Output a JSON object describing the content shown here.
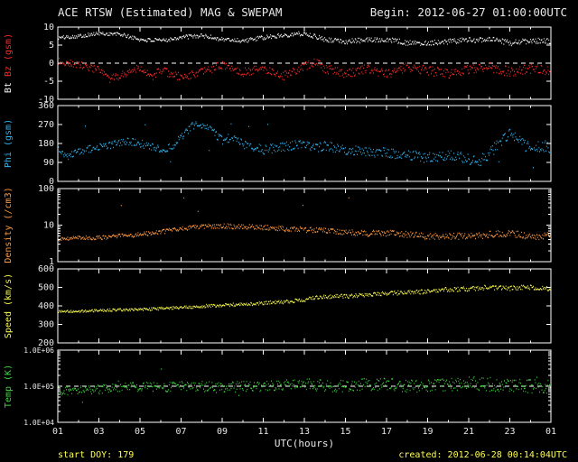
{
  "header": {
    "title": "ACE RTSW (Estimated) MAG & SWEPAM",
    "begin": "Begin: 2012-06-27 01:00:00UTC"
  },
  "footer": {
    "xaxis_title": "UTC(hours)",
    "start_doy": "start DOY: 179",
    "created": "created: 2012-06-28 00:14:04UTC"
  },
  "colors": {
    "background": "#000000",
    "frame": "#ffffff",
    "text": "#e8e8e8",
    "footer_text": "#ffff55",
    "bt": "#f5f5f5",
    "bz": "#ff2a2a",
    "phi": "#30b4f2",
    "density": "#ff9b42",
    "speed": "#f7f74e",
    "temp": "#3cd63c"
  },
  "x_axis": {
    "min": 1,
    "max": 25,
    "major_ticks": [
      1,
      3,
      5,
      7,
      9,
      11,
      13,
      15,
      17,
      19,
      21,
      23,
      25
    ],
    "labels": [
      "01",
      "03",
      "05",
      "07",
      "09",
      "11",
      "13",
      "15",
      "17",
      "19",
      "21",
      "23",
      "01"
    ],
    "minor_step": 1
  },
  "chart_data": [
    {
      "type": "scatter",
      "name": "bt-bz",
      "scale": "linear",
      "ylim": [
        -10,
        10
      ],
      "yticks": [
        10,
        5,
        0,
        -5,
        -10
      ],
      "ytick_labels": [
        "10",
        "5",
        "0",
        "-5",
        "-10"
      ],
      "tick_font": 10,
      "dashed_line_at": 0,
      "ylabel_segments": [
        {
          "text": "Bt ",
          "color_key": "bt"
        },
        {
          "text": "Bz ",
          "color_key": "bz"
        },
        {
          "text": "(gsm)",
          "color_key": "bz"
        }
      ],
      "series": [
        {
          "name": "Bt",
          "color_key": "bt",
          "seed": 101,
          "n": 700,
          "jitter": [
            0.5,
            0.8
          ],
          "trend": [
            [
              1,
              7
            ],
            [
              2,
              7.5
            ],
            [
              3,
              8.2
            ],
            [
              4,
              8
            ],
            [
              5,
              6.5
            ],
            [
              6,
              6.2
            ],
            [
              7,
              7.2
            ],
            [
              8,
              7.6
            ],
            [
              9,
              6.6
            ],
            [
              10,
              6.2
            ],
            [
              11,
              7
            ],
            [
              12,
              7.8
            ],
            [
              13,
              8.2
            ],
            [
              14,
              6.6
            ],
            [
              15,
              6
            ],
            [
              16,
              6.4
            ],
            [
              17,
              6.6
            ],
            [
              18,
              5.6
            ],
            [
              19,
              5.6
            ],
            [
              20,
              6
            ],
            [
              21,
              6.4
            ],
            [
              22,
              6.6
            ],
            [
              23,
              5.6
            ],
            [
              24,
              6.2
            ],
            [
              25,
              6
            ]
          ]
        },
        {
          "name": "Bz",
          "color_key": "bz",
          "seed": 202,
          "n": 700,
          "jitter": [
            1.0,
            1.4
          ],
          "trend": [
            [
              1,
              0.5
            ],
            [
              2,
              -0.5
            ],
            [
              3,
              -2
            ],
            [
              3.5,
              -4.5
            ],
            [
              4,
              -3.5
            ],
            [
              5,
              -1
            ],
            [
              5.5,
              -4
            ],
            [
              6,
              -2
            ],
            [
              7,
              -4
            ],
            [
              8,
              -2.5
            ],
            [
              9,
              -0.5
            ],
            [
              10,
              -2.5
            ],
            [
              11,
              -1.5
            ],
            [
              12,
              -3.5
            ],
            [
              13,
              -1
            ],
            [
              13.5,
              0.5
            ],
            [
              14,
              -1.5
            ],
            [
              15,
              -3
            ],
            [
              16,
              -1.5
            ],
            [
              17,
              -3
            ],
            [
              18,
              -1
            ],
            [
              19,
              -2
            ],
            [
              20,
              -3
            ],
            [
              21,
              -1.5
            ],
            [
              22,
              -1
            ],
            [
              23,
              -2.5
            ],
            [
              24,
              -1.5
            ],
            [
              25,
              -2
            ]
          ]
        }
      ]
    },
    {
      "type": "scatter",
      "name": "phi",
      "scale": "linear",
      "ylim": [
        0,
        360
      ],
      "yticks": [
        360,
        270,
        180,
        90,
        0
      ],
      "ytick_labels": [
        "360",
        "270",
        "180",
        "90",
        "0"
      ],
      "tick_font": 10,
      "dashed_line_at": null,
      "ylabel_segments": [
        {
          "text": "Phi (gsm)",
          "color_key": "phi"
        }
      ],
      "series": [
        {
          "name": "Phi",
          "color_key": "phi",
          "seed": 303,
          "n": 700,
          "jitter": [
            16,
            28
          ],
          "outlier_rate": 0.012,
          "outlier_mag": 130,
          "trend": [
            [
              1,
              150
            ],
            [
              1.5,
              120
            ],
            [
              2,
              140
            ],
            [
              3,
              165
            ],
            [
              4,
              180
            ],
            [
              4.5,
              190
            ],
            [
              5,
              180
            ],
            [
              6,
              150
            ],
            [
              6.5,
              165
            ],
            [
              7,
              210
            ],
            [
              7.5,
              260
            ],
            [
              8,
              270
            ],
            [
              8.5,
              235
            ],
            [
              9,
              195
            ],
            [
              9.5,
              210
            ],
            [
              10,
              175
            ],
            [
              11,
              150
            ],
            [
              12,
              165
            ],
            [
              13,
              180
            ],
            [
              13.5,
              160
            ],
            [
              14,
              170
            ],
            [
              15,
              150
            ],
            [
              16,
              140
            ],
            [
              17,
              135
            ],
            [
              18,
              125
            ],
            [
              19,
              110
            ],
            [
              20,
              125
            ],
            [
              21,
              105
            ],
            [
              21.5,
              95
            ],
            [
              22,
              130
            ],
            [
              22.5,
              190
            ],
            [
              23,
              225
            ],
            [
              23.5,
              190
            ],
            [
              24,
              150
            ],
            [
              24.5,
              170
            ],
            [
              25,
              160
            ]
          ]
        }
      ]
    },
    {
      "type": "scatter",
      "name": "density",
      "scale": "log",
      "ylim": [
        1,
        100
      ],
      "yticks": [
        100,
        10,
        1
      ],
      "ytick_labels": [
        "100",
        "10",
        "1"
      ],
      "tick_font": 10,
      "dashed_line_at": null,
      "ylabel_segments": [
        {
          "text": "Density (/cm3)",
          "color_key": "density"
        }
      ],
      "series": [
        {
          "name": "Density",
          "color_key": "density",
          "seed": 404,
          "n": 700,
          "jitter": [
            0.05,
            0.1
          ],
          "outlier_rate": 0.007,
          "outlier_mag": 0.9,
          "outlier_dir": 1,
          "trend": [
            [
              1,
              4
            ],
            [
              2,
              4.5
            ],
            [
              3,
              4.5
            ],
            [
              4,
              5
            ],
            [
              5,
              5.5
            ],
            [
              6,
              6.5
            ],
            [
              7,
              8
            ],
            [
              8,
              9
            ],
            [
              9,
              9.5
            ],
            [
              10,
              9
            ],
            [
              11,
              8.5
            ],
            [
              12,
              8
            ],
            [
              13,
              7.5
            ],
            [
              14,
              7
            ],
            [
              15,
              6.5
            ],
            [
              16,
              6
            ],
            [
              17,
              6
            ],
            [
              18,
              5.5
            ],
            [
              19,
              5
            ],
            [
              20,
              5
            ],
            [
              21,
              5
            ],
            [
              22,
              5.5
            ],
            [
              23,
              6
            ],
            [
              24,
              5
            ],
            [
              25,
              5
            ]
          ]
        }
      ]
    },
    {
      "type": "scatter",
      "name": "speed",
      "scale": "linear",
      "ylim": [
        200,
        600
      ],
      "yticks": [
        600,
        500,
        400,
        300,
        200
      ],
      "ytick_labels": [
        "600",
        "500",
        "400",
        "300",
        "200"
      ],
      "tick_font": 10,
      "dashed_line_at": null,
      "ylabel_segments": [
        {
          "text": "Speed (km/s)",
          "color_key": "speed"
        }
      ],
      "series": [
        {
          "name": "Speed",
          "color_key": "speed",
          "seed": 505,
          "n": 700,
          "jitter": [
            6,
            14
          ],
          "trend": [
            [
              1,
              370
            ],
            [
              2,
              370
            ],
            [
              3,
              375
            ],
            [
              4,
              378
            ],
            [
              5,
              380
            ],
            [
              6,
              385
            ],
            [
              7,
              392
            ],
            [
              8,
              398
            ],
            [
              9,
              402
            ],
            [
              10,
              408
            ],
            [
              11,
              415
            ],
            [
              12,
              422
            ],
            [
              13,
              432
            ],
            [
              13.5,
              445
            ],
            [
              14,
              450
            ],
            [
              15,
              452
            ],
            [
              16,
              458
            ],
            [
              17,
              468
            ],
            [
              18,
              472
            ],
            [
              19,
              478
            ],
            [
              20,
              488
            ],
            [
              21,
              492
            ],
            [
              22,
              500
            ],
            [
              23,
              495
            ],
            [
              24,
              500
            ],
            [
              25,
              492
            ]
          ]
        }
      ]
    },
    {
      "type": "scatter",
      "name": "temp",
      "scale": "log",
      "ylim": [
        10000,
        1000000
      ],
      "yticks": [
        1000000,
        100000,
        10000
      ],
      "ytick_labels": [
        "1.0E+06",
        "1.0E+05",
        "1.0E+04"
      ],
      "tick_font": 8,
      "dashed_line_at": 100000,
      "ylabel_segments": [
        {
          "text": "Temp (K)",
          "color_key": "temp"
        }
      ],
      "series": [
        {
          "name": "Temp",
          "color_key": "temp",
          "seed": 606,
          "n": 700,
          "jitter": [
            0.12,
            0.2
          ],
          "outlier_rate": 0.012,
          "outlier_mag": 0.45,
          "trend": [
            [
              1,
              72000
            ],
            [
              2,
              80000
            ],
            [
              3,
              80000
            ],
            [
              4,
              90000
            ],
            [
              5,
              100000
            ],
            [
              6,
              90000
            ],
            [
              7,
              100000
            ],
            [
              8,
              100000
            ],
            [
              9,
              90000
            ],
            [
              10,
              100000
            ],
            [
              11,
              100000
            ],
            [
              12,
              112000
            ],
            [
              13,
              112000
            ],
            [
              14,
              100000
            ],
            [
              15,
              100000
            ],
            [
              16,
              112000
            ],
            [
              17,
              112000
            ],
            [
              18,
              100000
            ],
            [
              19,
              100000
            ],
            [
              20,
              112000
            ],
            [
              21,
              126000
            ],
            [
              22,
              112000
            ],
            [
              23,
              112000
            ],
            [
              24,
              100000
            ],
            [
              25,
              100000
            ]
          ]
        }
      ]
    }
  ]
}
